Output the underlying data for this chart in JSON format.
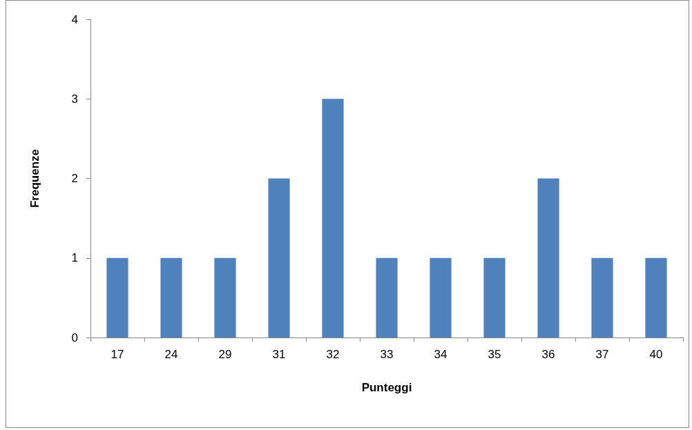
{
  "chart_data": {
    "type": "bar",
    "xlabel": "Punteggi",
    "ylabel": "Frequenze",
    "categories": [
      "17",
      "24",
      "29",
      "31",
      "32",
      "33",
      "34",
      "35",
      "36",
      "37",
      "40"
    ],
    "values": [
      1,
      1,
      1,
      2,
      3,
      1,
      1,
      1,
      2,
      1,
      1
    ],
    "color": "#4f81bd",
    "ylim": [
      0,
      4
    ],
    "yticks": [
      0,
      1,
      2,
      3,
      4
    ],
    "grid": false
  }
}
